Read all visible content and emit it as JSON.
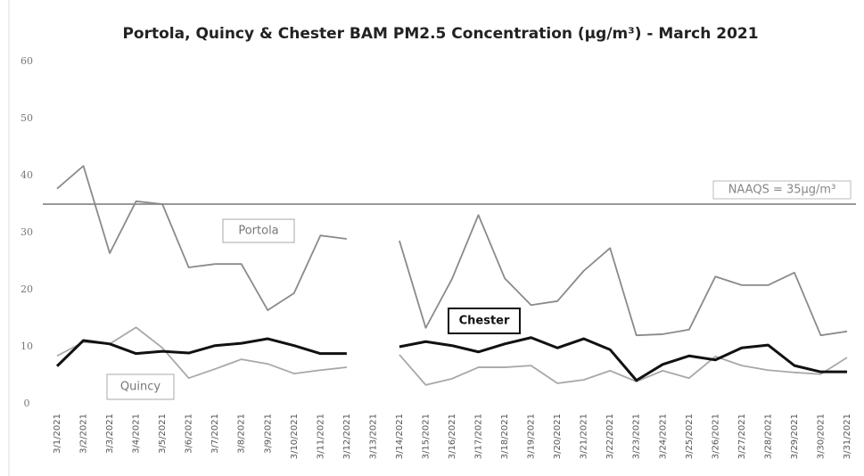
{
  "chart_data": {
    "type": "line",
    "title": "Portola, Quincy & Chester BAM PM2.5 Concentration (µg/m³) - March 2021",
    "categories": [
      "3/1/2021",
      "3/2/2021",
      "3/3/2021",
      "3/4/2021",
      "3/5/2021",
      "3/6/2021",
      "3/7/2021",
      "3/8/2021",
      "3/9/2021",
      "3/10/2021",
      "3/11/2021",
      "3/12/2021",
      "3/13/2021",
      "3/14/2021",
      "3/15/2021",
      "3/16/2021",
      "3/17/2021",
      "3/18/2021",
      "3/19/2021",
      "3/20/2021",
      "3/21/2021",
      "3/22/2021",
      "3/23/2021",
      "3/24/2021",
      "3/25/2021",
      "3/26/2021",
      "3/27/2021",
      "3/28/2021",
      "3/29/2021",
      "3/30/2021",
      "3/31/2021"
    ],
    "series": [
      {
        "name": "Portola",
        "color": "#8a8a8a",
        "values": [
          37.7,
          41.7,
          26.4,
          35.5,
          35,
          23.9,
          24.5,
          24.5,
          16.4,
          19.4,
          29.5,
          28.9,
          null,
          28.6,
          13.3,
          21.9,
          33.1,
          22,
          17.3,
          18,
          23.3,
          27.3,
          12,
          12.2,
          13,
          22.3,
          20.8,
          20.8,
          23,
          12,
          12.7
        ]
      },
      {
        "name": "Quincy",
        "color": "#a8a8a8",
        "values": [
          8.4,
          10.8,
          10.5,
          13.4,
          9.8,
          4.5,
          6.1,
          7.8,
          7,
          5.3,
          5.9,
          6.4,
          null,
          8.6,
          3.3,
          4.4,
          6.4,
          6.4,
          6.7,
          3.6,
          4.2,
          5.8,
          3.9,
          5.8,
          4.5,
          8.3,
          6.7,
          5.9,
          5.5,
          5.2,
          8.1
        ]
      },
      {
        "name": "Chester",
        "color": "#111111",
        "values": [
          6.6,
          11.1,
          10.5,
          8.8,
          9.2,
          8.9,
          10.2,
          10.6,
          11.4,
          10.2,
          8.8,
          8.8,
          null,
          10,
          10.9,
          10.2,
          9.1,
          10.5,
          11.6,
          9.8,
          11.4,
          9.5,
          4.1,
          6.9,
          8.4,
          7.7,
          9.8,
          10.3,
          6.7,
          5.6,
          5.6
        ]
      }
    ],
    "reference_line": {
      "value": 35,
      "label": "NAAQS = 35µg/m³",
      "color": "#999999"
    },
    "ylim": [
      0,
      60
    ],
    "yticks": [
      0,
      10,
      20,
      30,
      40,
      50,
      60
    ],
    "grid": false
  }
}
